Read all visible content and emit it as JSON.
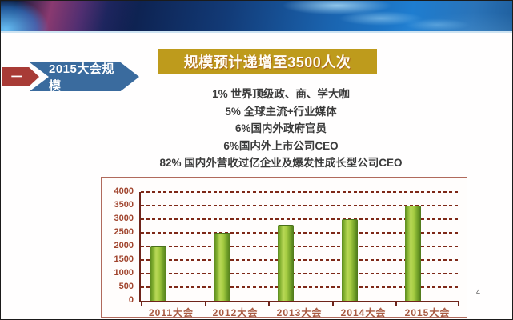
{
  "slide": {
    "section_marker": "一",
    "section_title": "2015大会规模",
    "banner_title": "规模预计递增至3500人次",
    "bullets": [
      "1% 世界顶级政、商、学大咖",
      "5% 全球主流+行业媒体",
      "6%国内外政府官员",
      "6%国内外上市公司CEO",
      "82% 国内外营收过亿企业及爆发性成长型公司CEO"
    ],
    "page_number": "4",
    "colors": {
      "banner_bg": "#be9b1c",
      "arrow_red": "#a83b36",
      "arrow_blue": "#3a6b9e",
      "chart_frame": "#b06a5c",
      "grid_color": "#7e2817",
      "axis_label_color": "#a0432c",
      "bar_light": "#b9d857",
      "bar_dark": "#4e771a"
    }
  },
  "chart_data": {
    "type": "bar",
    "categories": [
      "2011大会",
      "2012大会",
      "2013大会",
      "2014大会",
      "2015大会"
    ],
    "values": [
      2000,
      2500,
      2800,
      3000,
      3500
    ],
    "title": "",
    "xlabel": "",
    "ylabel": "",
    "ylim": [
      0,
      4000
    ],
    "ystep": 500,
    "grid": "dashed-horizontal",
    "legend": "none",
    "bar_color": "green-gradient"
  }
}
